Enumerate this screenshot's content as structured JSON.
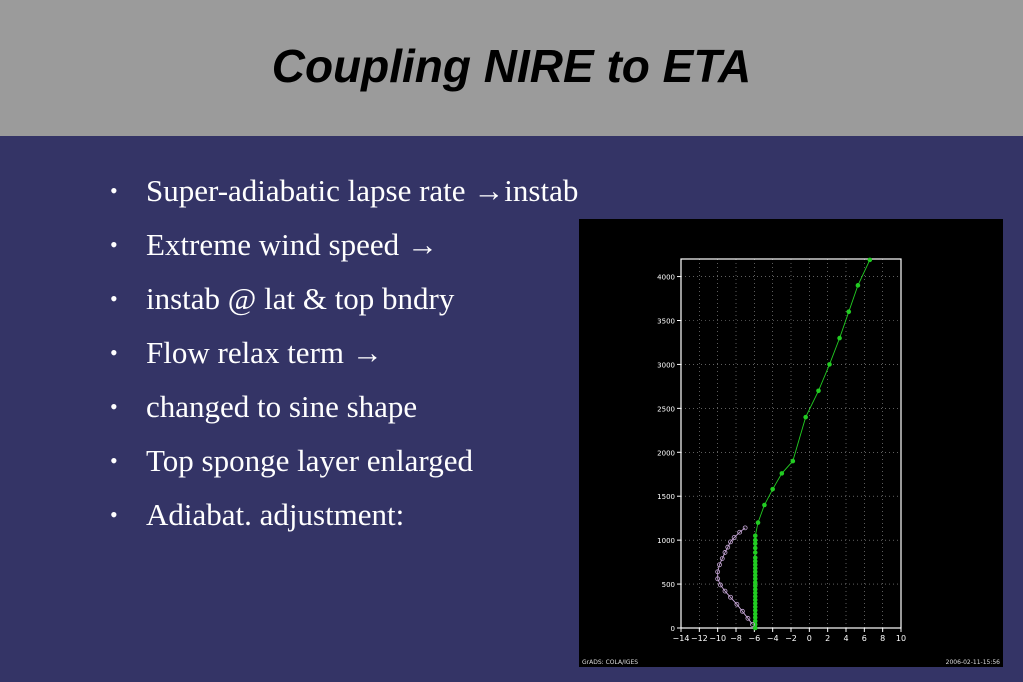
{
  "slide": {
    "title": "Coupling NIRE to ETA",
    "bullets": [
      "Super-adiabatic lapse rate →instab",
      "Extreme wind speed →",
      "instab @ lat & top bndry",
      " Flow relax term →",
      "changed to sine shape",
      "Top sponge layer enlarged",
      "Adiabat. adjustment:"
    ],
    "bullet_glyph": "•"
  },
  "chart_data": {
    "type": "line",
    "title": "",
    "xlabel": "",
    "ylabel": "",
    "xlim": [
      -14,
      10
    ],
    "ylim": [
      0,
      4200
    ],
    "xticks": [
      -14,
      -12,
      -10,
      -8,
      -6,
      -4,
      -2,
      0,
      2,
      4,
      6,
      8,
      10
    ],
    "xtick_labels": [
      "−14",
      "−12",
      "−10",
      "−8",
      "−6",
      "−4",
      "−2",
      "0",
      "2",
      "4",
      "6",
      "8",
      "10"
    ],
    "yticks": [
      0,
      500,
      1000,
      1500,
      2000,
      2500,
      3000,
      3500,
      4000
    ],
    "ytick_labels": [
      "0",
      "500",
      "1000",
      "1500",
      "2000",
      "2500",
      "3000",
      "3500",
      "4000"
    ],
    "grid": true,
    "footer_left": "GrADS: COLA/IGES",
    "footer_right": "2006-02-11-15:56",
    "series": [
      {
        "color": "#22cc22",
        "marker": "filled",
        "x": [
          -5.9,
          -5.9,
          -5.9,
          -5.9,
          -5.9,
          -5.9,
          -5.9,
          -5.9,
          -5.9,
          -5.9,
          -5.9,
          -5.9,
          -5.9,
          -5.9,
          -5.9,
          -5.9,
          -5.9,
          -5.9,
          -5.9,
          -5.9,
          -5.9,
          -5.9,
          -5.9,
          -5.9,
          -5.9,
          -5.9,
          -5.6,
          -4.9,
          -4.0,
          -3.0,
          -1.8,
          -0.4,
          1.0,
          2.2,
          3.3,
          4.3,
          5.3,
          6.6
        ],
        "y": [
          0,
          40,
          80,
          120,
          160,
          200,
          240,
          280,
          320,
          360,
          400,
          440,
          480,
          520,
          560,
          600,
          640,
          680,
          720,
          760,
          800,
          860,
          910,
          960,
          1000,
          1050,
          1200,
          1400,
          1580,
          1760,
          1900,
          2400,
          2700,
          3000,
          3300,
          3600,
          3900,
          4190
        ]
      },
      {
        "color": "#c8a8d8",
        "marker": "open",
        "x": [
          -6.2,
          -6.7,
          -7.3,
          -7.9,
          -8.6,
          -9.2,
          -9.7,
          -10.0,
          -10.0,
          -9.8,
          -9.5,
          -9.2,
          -8.9,
          -8.6,
          -8.2,
          -7.6,
          -7.0
        ],
        "y": [
          40,
          110,
          190,
          270,
          350,
          420,
          490,
          560,
          640,
          720,
          790,
          860,
          920,
          980,
          1030,
          1090,
          1140
        ]
      }
    ]
  }
}
